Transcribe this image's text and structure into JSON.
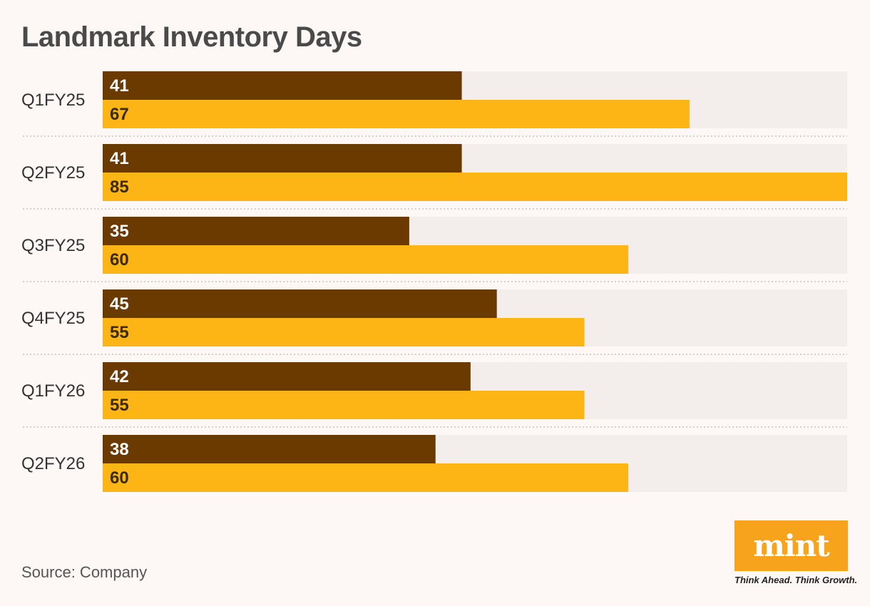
{
  "title": "Landmark Inventory Days",
  "source": "Source: Company",
  "logo": {
    "word": "mint",
    "tagline": "Think Ahead. Think Growth."
  },
  "colors": {
    "series_dark": "#6b3a00",
    "series_light": "#fdb515",
    "track": "#f3eeec",
    "separator": "#c8c0bc"
  },
  "chart_data": {
    "type": "bar",
    "orientation": "horizontal",
    "title": "Landmark Inventory Days",
    "categories": [
      "Q1FY25",
      "Q2FY25",
      "Q3FY25",
      "Q4FY25",
      "Q1FY26",
      "Q2FY26"
    ],
    "series": [
      {
        "values": [
          41,
          41,
          35,
          45,
          42,
          38
        ],
        "color": "#6b3a00"
      },
      {
        "values": [
          67,
          85,
          60,
          55,
          55,
          60
        ],
        "color": "#fdb515"
      }
    ],
    "xlim": [
      0,
      85
    ],
    "grid": false,
    "data_labels": true
  }
}
